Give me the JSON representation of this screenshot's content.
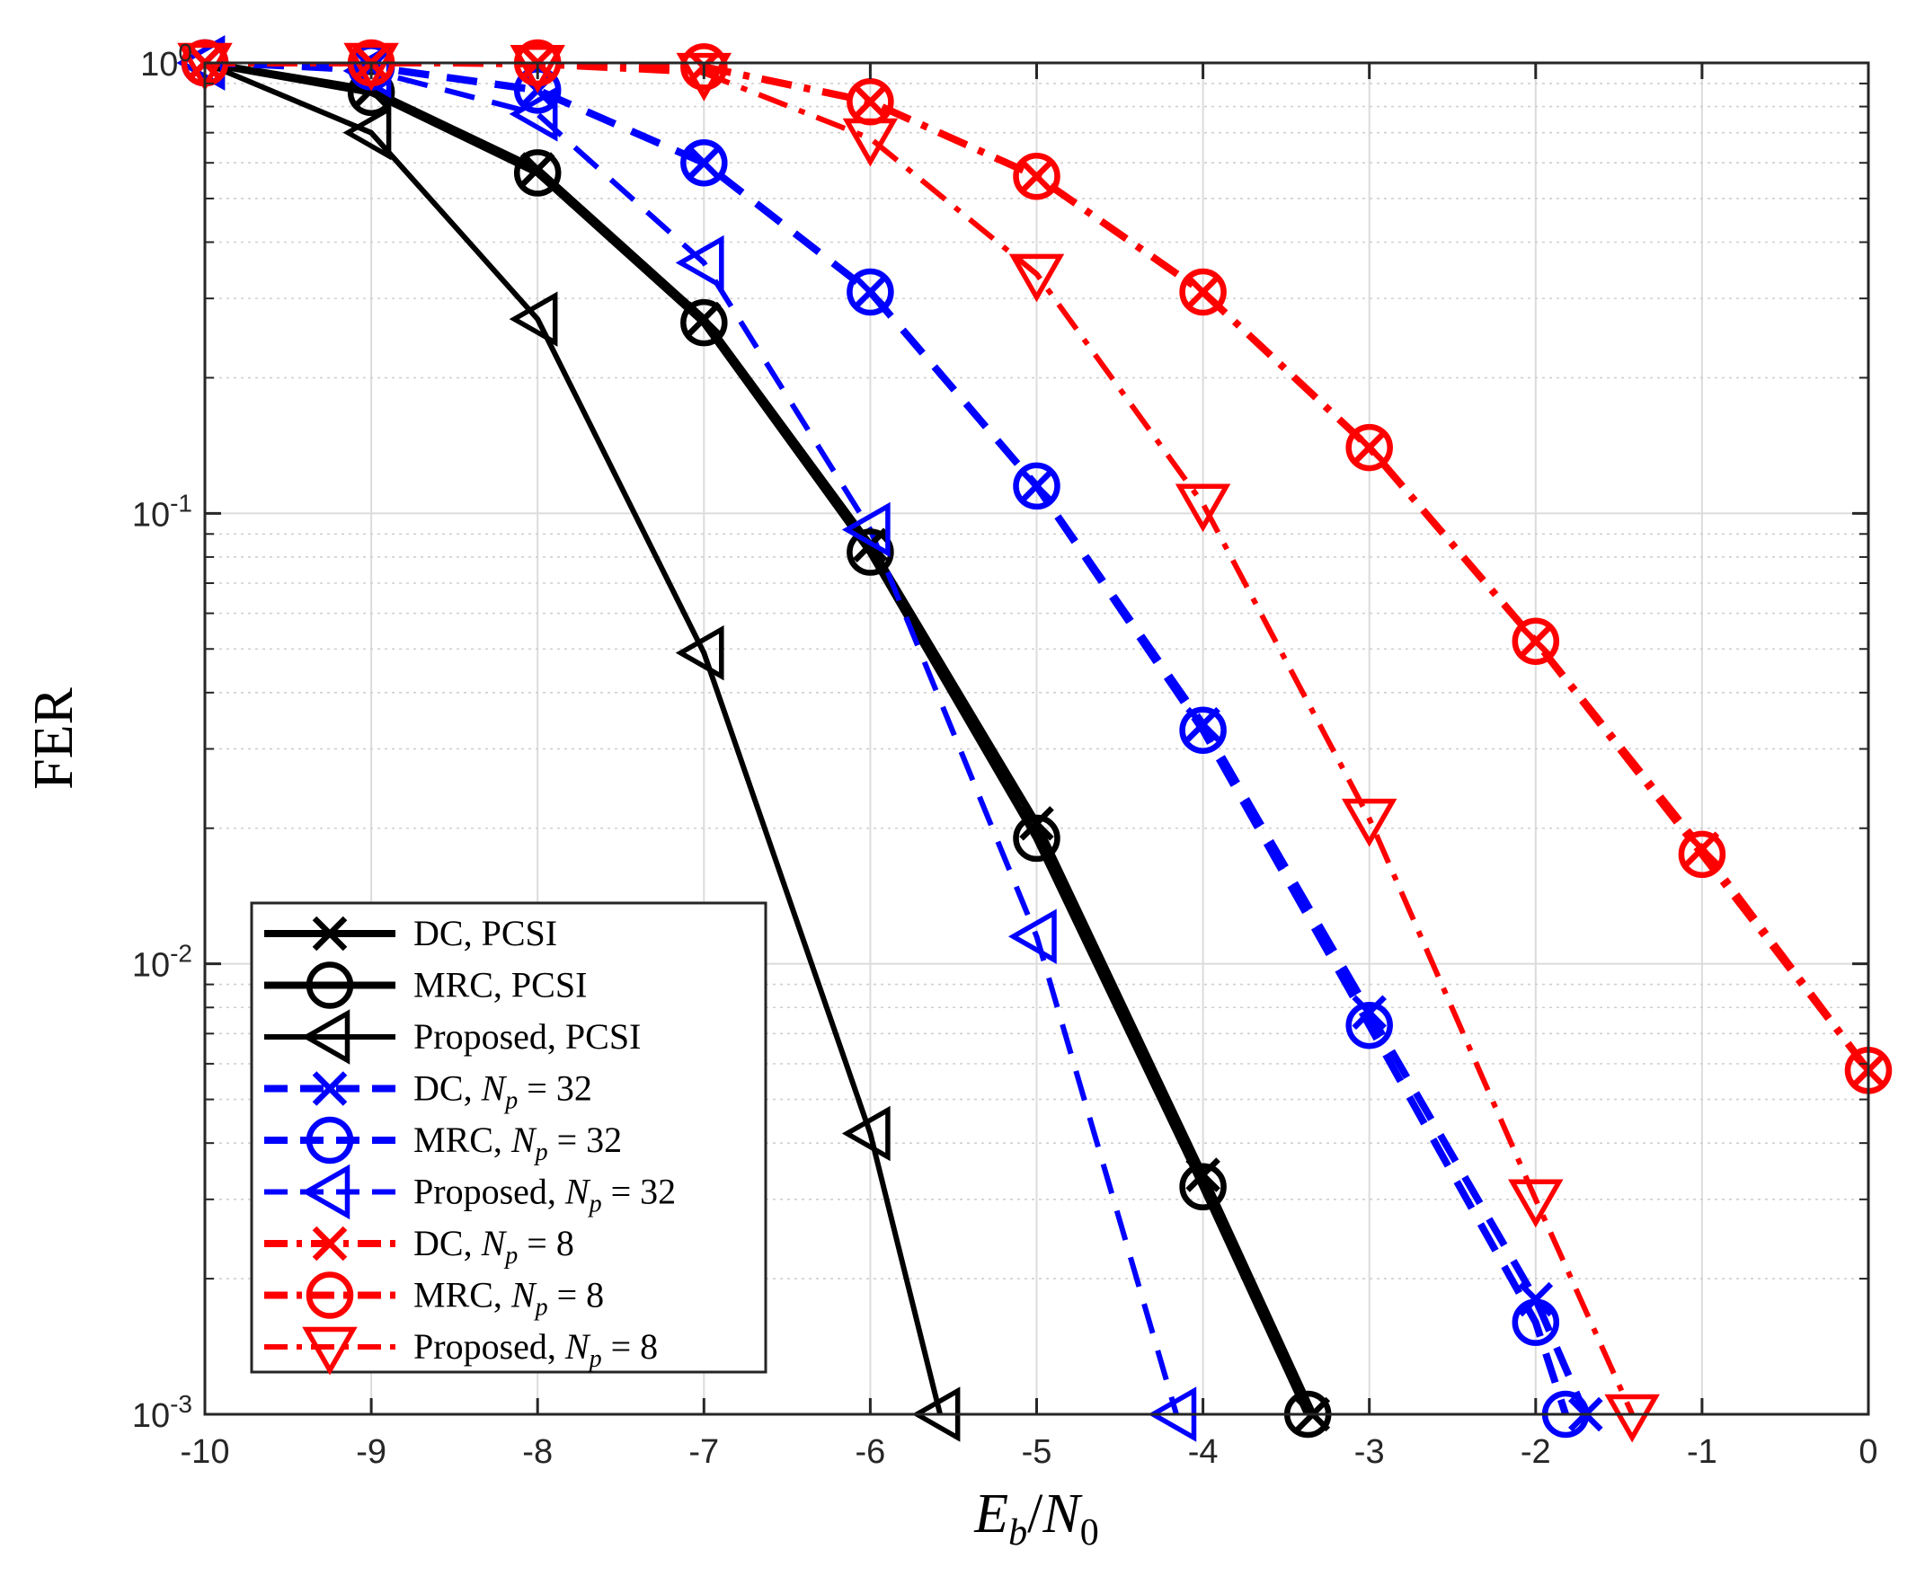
{
  "chart_data": {
    "type": "line",
    "title": "",
    "xlabel": "E_b/N_0",
    "xlabel_parts": {
      "E": "E",
      "b": "b",
      "slash": "/",
      "N": "N",
      "zero": "0"
    },
    "ylabel": "FER",
    "xlim": [
      -10,
      0
    ],
    "ylim": [
      0.001,
      1
    ],
    "yscale": "log",
    "grid": true,
    "legend_position": "bottom-left",
    "x_ticks": [
      "-10",
      "-9",
      "-8",
      "-7",
      "-6",
      "-5",
      "-4",
      "-3",
      "-2",
      "-1",
      "0"
    ],
    "y_ticks": [
      {
        "value": 1,
        "base": "10",
        "exp": "0"
      },
      {
        "value": 0.1,
        "base": "10",
        "exp": "-1"
      },
      {
        "value": 0.01,
        "base": "10",
        "exp": "-2"
      },
      {
        "value": 0.001,
        "base": "10",
        "exp": "-3"
      }
    ],
    "series": [
      {
        "name": "DC, PCSI",
        "label_prefix": "DC, PCSI",
        "label_math": "",
        "color": "#000000",
        "style": "solid",
        "marker": "x",
        "width": 8,
        "x": [
          -10,
          -9,
          -8,
          -7,
          -6,
          -5,
          -4,
          -3.34
        ],
        "y": [
          1,
          0.87,
          0.58,
          0.27,
          0.085,
          0.0205,
          0.0034,
          0.001
        ]
      },
      {
        "name": "MRC, PCSI",
        "label_prefix": "MRC, PCSI",
        "label_math": "",
        "color": "#000000",
        "style": "solid",
        "marker": "o",
        "width": 8,
        "x": [
          -10,
          -9,
          -8,
          -7,
          -6,
          -5,
          -4,
          -3.37
        ],
        "y": [
          1,
          0.86,
          0.57,
          0.265,
          0.082,
          0.019,
          0.0032,
          0.001
        ]
      },
      {
        "name": "Proposed, PCSI",
        "label_prefix": "Proposed, PCSI",
        "label_math": "",
        "color": "#000000",
        "style": "solid",
        "marker": "triangle-left",
        "width": 6,
        "x": [
          -10,
          -9,
          -8,
          -7,
          -6,
          -5.58
        ],
        "y": [
          1,
          0.7,
          0.27,
          0.049,
          0.0042,
          0.001
        ]
      },
      {
        "name": "DC, N_p = 32",
        "label_prefix": "DC, ",
        "label_math": "N_p = 32",
        "color": "#0000ff",
        "style": "dashed",
        "marker": "x",
        "width": 8,
        "x": [
          -10,
          -9,
          -8,
          -7,
          -6,
          -5,
          -4,
          -3,
          -2,
          -1.7
        ],
        "y": [
          1,
          0.98,
          0.87,
          0.6,
          0.31,
          0.115,
          0.034,
          0.0078,
          0.0018,
          0.001
        ]
      },
      {
        "name": "MRC, N_p = 32",
        "label_prefix": "MRC, ",
        "label_math": "N_p = 32",
        "color": "#0000ff",
        "style": "dashed",
        "marker": "o",
        "width": 8,
        "x": [
          -10,
          -9,
          -8,
          -7,
          -6,
          -5,
          -4,
          -3,
          -2,
          -1.82
        ],
        "y": [
          1,
          0.98,
          0.87,
          0.6,
          0.31,
          0.115,
          0.033,
          0.0073,
          0.0016,
          0.001
        ]
      },
      {
        "name": "Proposed, N_p = 32",
        "label_prefix": "Proposed, ",
        "label_math": "N_p = 32",
        "color": "#0000ff",
        "style": "dashed",
        "marker": "triangle-left",
        "width": 6,
        "x": [
          -10,
          -9,
          -8,
          -7,
          -6,
          -5,
          -4.16
        ],
        "y": [
          1,
          0.96,
          0.77,
          0.36,
          0.092,
          0.0115,
          0.001
        ]
      },
      {
        "name": "DC, N_p = 8",
        "label_prefix": "DC, ",
        "label_math": "N_p = 8",
        "color": "#ff0000",
        "style": "dashdot",
        "marker": "x",
        "width": 8,
        "x": [
          -10,
          -9,
          -8,
          -7,
          -6,
          -5,
          -4,
          -3,
          -2,
          -1,
          0
        ],
        "y": [
          1,
          1,
          1,
          0.98,
          0.82,
          0.56,
          0.31,
          0.14,
          0.052,
          0.018,
          0.0058
        ]
      },
      {
        "name": "MRC, N_p = 8",
        "label_prefix": "MRC, ",
        "label_math": "N_p = 8",
        "color": "#ff0000",
        "style": "dashdot",
        "marker": "o",
        "width": 8,
        "x": [
          -10,
          -9,
          -8,
          -7,
          -6,
          -5,
          -4,
          -3,
          -2,
          -1,
          0
        ],
        "y": [
          1,
          1,
          1,
          0.98,
          0.82,
          0.56,
          0.31,
          0.14,
          0.052,
          0.0175,
          0.0058
        ]
      },
      {
        "name": "Proposed, N_p = 8",
        "label_prefix": "Proposed, ",
        "label_math": "N_p = 8",
        "color": "#ff0000",
        "style": "dashdot",
        "marker": "triangle-down",
        "width": 6,
        "x": [
          -10,
          -9,
          -8,
          -7,
          -6,
          -5,
          -4,
          -3,
          -2,
          -1.42
        ],
        "y": [
          1,
          1,
          0.99,
          0.95,
          0.68,
          0.34,
          0.105,
          0.021,
          0.003,
          0.001
        ]
      }
    ]
  }
}
